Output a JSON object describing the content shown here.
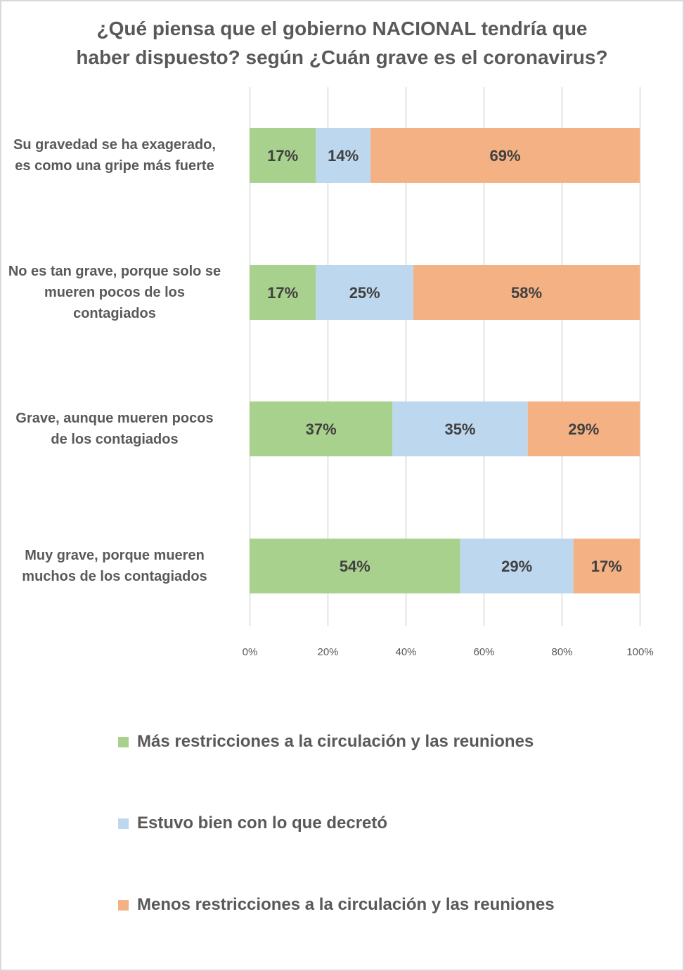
{
  "chart_data": {
    "type": "bar",
    "orientation": "horizontal",
    "stacked": "percent",
    "title": "¿Qué piensa que el gobierno NACIONAL tendría que haber dispuesto? según ¿Cuán grave es el coronavirus?",
    "title_lines": [
      "¿Qué piensa que el gobierno NACIONAL tendría que",
      "haber dispuesto? según ¿Cuán grave es el coronavirus?"
    ],
    "categories": [
      "Su gravedad se ha exagerado, es como una gripe más fuerte",
      "No es tan grave, porque solo se mueren pocos de los contagiados",
      "Grave, aunque mueren pocos de los contagiados",
      "Muy grave, porque mueren muchos de los contagiados"
    ],
    "category_label_lines": [
      [
        "Su gravedad se ha exagerado,",
        "es como una gripe más fuerte"
      ],
      [
        "No es tan grave, porque solo se",
        "mueren pocos de los",
        "contagiados"
      ],
      [
        "Grave, aunque mueren pocos",
        "de los contagiados"
      ],
      [
        "Muy grave, porque mueren",
        "muchos de los contagiados"
      ]
    ],
    "series": [
      {
        "name": "Más restricciones a la circulación y las reuniones",
        "color": "#A9D18E",
        "values": [
          17,
          17,
          37,
          54
        ],
        "labels": [
          "17%",
          "17%",
          "37%",
          "54%"
        ]
      },
      {
        "name": "Estuvo bien con lo que decretó",
        "color": "#BDD7EE",
        "values": [
          14,
          25,
          35,
          29
        ],
        "labels": [
          "14%",
          "25%",
          "35%",
          "29%"
        ]
      },
      {
        "name": "Menos restricciones a la circulación y las reuniones",
        "color": "#F4B183",
        "values": [
          69,
          58,
          29,
          17
        ],
        "labels": [
          "69%",
          "58%",
          "29%",
          "17%"
        ]
      }
    ],
    "xlabel": "",
    "ylabel": "",
    "xlim": [
      0,
      100
    ],
    "x_ticks": [
      "0%",
      "20%",
      "40%",
      "60%",
      "80%",
      "100%"
    ],
    "grid": true,
    "legend_position": "bottom",
    "text_color": "#595959",
    "data_label_color": "#404040",
    "grid_color": "#d9d9d9"
  }
}
